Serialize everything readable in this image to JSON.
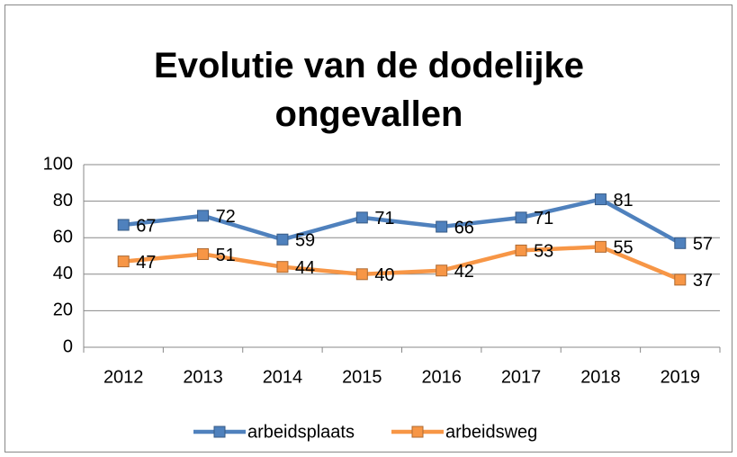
{
  "chart_data": {
    "type": "line",
    "title": "Evolutie van de dodelijke ongevallen",
    "categories": [
      "2012",
      "2013",
      "2014",
      "2015",
      "2016",
      "2017",
      "2018",
      "2019"
    ],
    "series": [
      {
        "name": "arbeidsplaats",
        "color": "#4f81bd",
        "values": [
          67,
          72,
          59,
          71,
          66,
          71,
          81,
          57
        ]
      },
      {
        "name": "arbeidsweg",
        "color": "#f79646",
        "values": [
          47,
          51,
          44,
          40,
          42,
          53,
          55,
          37
        ]
      }
    ],
    "ylim": [
      0,
      100
    ],
    "yticks": [
      0,
      20,
      40,
      60,
      80,
      100
    ],
    "grid": true,
    "legend": "bottom"
  }
}
